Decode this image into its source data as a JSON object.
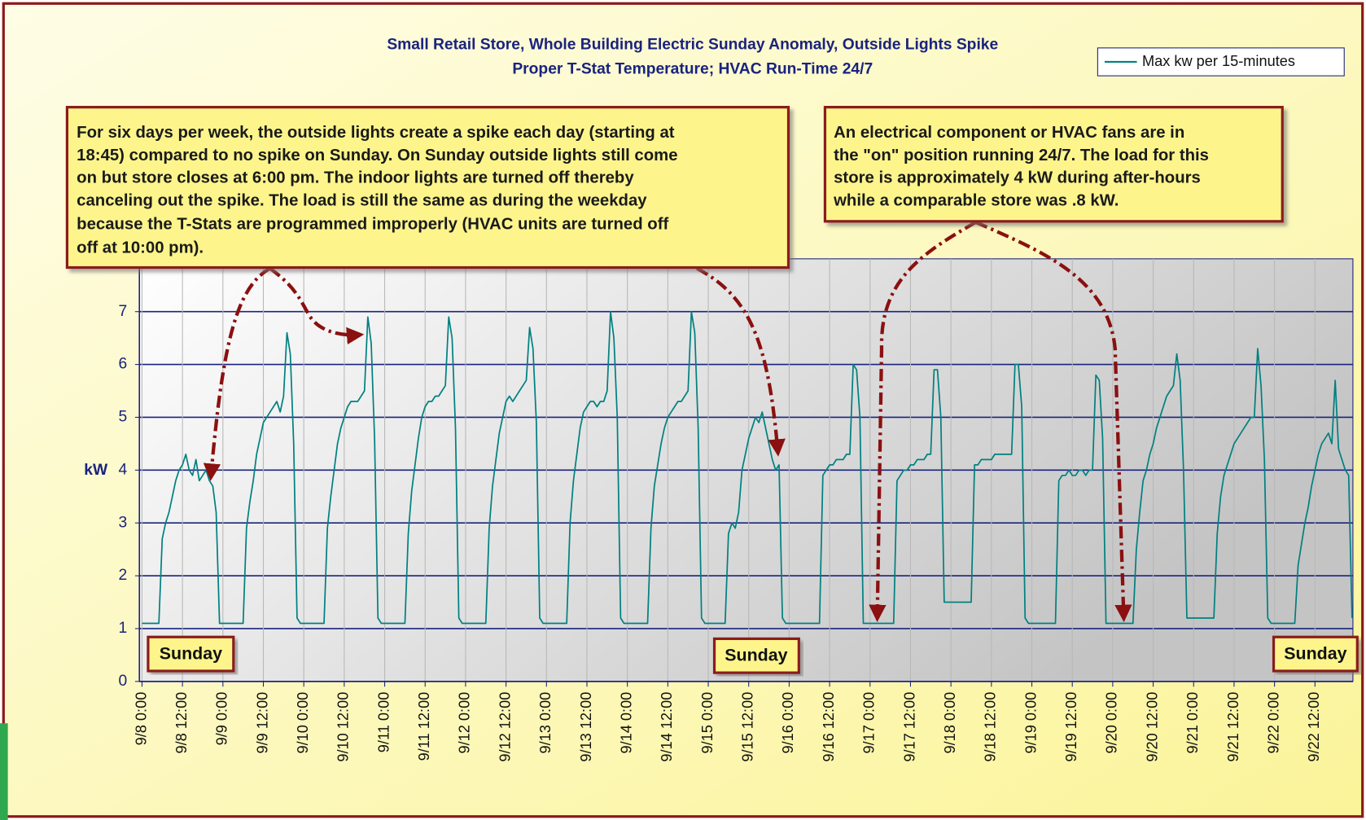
{
  "chart_data": {
    "type": "line",
    "title": [
      "Small Retail Store, Whole Building Electric Sunday Anomaly, Outside Lights Spike",
      "Proper T-Stat Temperature; HVAC Run-Time 24/7"
    ],
    "y_label": "kW",
    "ylim": [
      0,
      8
    ],
    "yticks": [
      0,
      1,
      2,
      3,
      4,
      5,
      6,
      7
    ],
    "grid": true,
    "legend": "top-right",
    "annotations": [
      [
        "For six days per week, the outside lights create a spike each day (starting at",
        "18:45) compared to no spike on Sunday.  On Sunday outside lights still come",
        "on but store closes at 6:00 pm.  The indoor lights are turned off thereby",
        "canceling out the spike.  The load is still the same as during the weekday",
        "because the T-Stats are programmed improperly (HVAC units are turned off",
        "off at 10:00 pm)."
      ],
      [
        "An electrical component or HVAC fans are in",
        "the \"on\" position running 24/7.  The load for this",
        "store is approximately 4 kW during after-hours",
        "while a comparable store was .8 kW."
      ]
    ],
    "day_labels": [
      "Sunday",
      "Sunday",
      "Sunday"
    ],
    "categories": [
      "9/8 0:00",
      null,
      null,
      null,
      null,
      null,
      null,
      null,
      null,
      null,
      null,
      null,
      "9/8 12:00",
      null,
      null,
      null,
      null,
      null,
      null,
      null,
      null,
      null,
      null,
      null,
      "9/9 0:00",
      null,
      null,
      null,
      null,
      null,
      null,
      null,
      null,
      null,
      null,
      null,
      "9/9 12:00",
      null,
      null,
      null,
      null,
      null,
      null,
      null,
      null,
      null,
      null,
      null,
      "9/10 0:00",
      null,
      null,
      null,
      null,
      null,
      null,
      null,
      null,
      null,
      null,
      null,
      "9/10 12:00",
      null,
      null,
      null,
      null,
      null,
      null,
      null,
      null,
      null,
      null,
      null,
      "9/11 0:00",
      null,
      null,
      null,
      null,
      null,
      null,
      null,
      null,
      null,
      null,
      null,
      "9/11 12:00",
      null,
      null,
      null,
      null,
      null,
      null,
      null,
      null,
      null,
      null,
      null,
      "9/12 0:00",
      null,
      null,
      null,
      null,
      null,
      null,
      null,
      null,
      null,
      null,
      null,
      "9/12 12:00",
      null,
      null,
      null,
      null,
      null,
      null,
      null,
      null,
      null,
      null,
      null,
      "9/13 0:00",
      null,
      null,
      null,
      null,
      null,
      null,
      null,
      null,
      null,
      null,
      null,
      "9/13 12:00",
      null,
      null,
      null,
      null,
      null,
      null,
      null,
      null,
      null,
      null,
      null,
      "9/14 0:00",
      null,
      null,
      null,
      null,
      null,
      null,
      null,
      null,
      null,
      null,
      null,
      "9/14 12:00",
      null,
      null,
      null,
      null,
      null,
      null,
      null,
      null,
      null,
      null,
      null,
      "9/15 0:00",
      null,
      null,
      null,
      null,
      null,
      null,
      null,
      null,
      null,
      null,
      null,
      "9/15 12:00",
      null,
      null,
      null,
      null,
      null,
      null,
      null,
      null,
      null,
      null,
      null,
      "9/16 0:00",
      null,
      null,
      null,
      null,
      null,
      null,
      null,
      null,
      null,
      null,
      null,
      "9/16 12:00",
      null,
      null,
      null,
      null,
      null,
      null,
      null,
      null,
      null,
      null,
      null,
      "9/17 0:00",
      null,
      null,
      null,
      null,
      null,
      null,
      null,
      null,
      null,
      null,
      null,
      "9/17 12:00",
      null,
      null,
      null,
      null,
      null,
      null,
      null,
      null,
      null,
      null,
      null,
      "9/18 0:00",
      null,
      null,
      null,
      null,
      null,
      null,
      null,
      null,
      null,
      null,
      null,
      "9/18 12:00",
      null,
      null,
      null,
      null,
      null,
      null,
      null,
      null,
      null,
      null,
      null,
      "9/19 0:00",
      null,
      null,
      null,
      null,
      null,
      null,
      null,
      null,
      null,
      null,
      null,
      "9/19 12:00",
      null,
      null,
      null,
      null,
      null,
      null,
      null,
      null,
      null,
      null,
      null,
      "9/20 0:00",
      null,
      null,
      null,
      null,
      null,
      null,
      null,
      null,
      null,
      null,
      null,
      "9/20 12:00",
      null,
      null,
      null,
      null,
      null,
      null,
      null,
      null,
      null,
      null,
      null,
      "9/21 0:00",
      null,
      null,
      null,
      null,
      null,
      null,
      null,
      null,
      null,
      null,
      null,
      "9/21 12:00",
      null,
      null,
      null,
      null,
      null,
      null,
      null,
      null,
      null,
      null,
      null,
      "9/22 0:00",
      null,
      null,
      null,
      null,
      null,
      null,
      null,
      null,
      null,
      null,
      null,
      "9/22 12:00",
      null,
      null,
      null,
      null,
      null,
      null,
      null,
      null,
      null,
      null,
      null
    ],
    "series": [
      {
        "name": "Max kw per 15-minutes",
        "color": "#008080",
        "values": [
          1.1,
          1.1,
          1.1,
          1.1,
          1.1,
          1.1,
          2.7,
          3.0,
          3.2,
          3.5,
          3.8,
          4.0,
          4.1,
          4.3,
          4.0,
          3.9,
          4.2,
          3.8,
          3.9,
          4.0,
          3.8,
          3.7,
          3.2,
          1.1,
          1.1,
          1.1,
          1.1,
          1.1,
          1.1,
          1.1,
          1.1,
          2.9,
          3.4,
          3.8,
          4.3,
          4.6,
          4.9,
          5.0,
          5.1,
          5.2,
          5.3,
          5.1,
          5.4,
          6.6,
          6.2,
          4.5,
          1.2,
          1.1,
          1.1,
          1.1,
          1.1,
          1.1,
          1.1,
          1.1,
          1.1,
          2.9,
          3.5,
          4.0,
          4.5,
          4.8,
          5.0,
          5.2,
          5.3,
          5.3,
          5.3,
          5.4,
          5.5,
          6.9,
          6.4,
          4.6,
          1.2,
          1.1,
          1.1,
          1.1,
          1.1,
          1.1,
          1.1,
          1.1,
          1.1,
          2.8,
          3.6,
          4.1,
          4.6,
          5.0,
          5.2,
          5.3,
          5.3,
          5.4,
          5.4,
          5.5,
          5.6,
          6.9,
          6.5,
          4.8,
          1.2,
          1.1,
          1.1,
          1.1,
          1.1,
          1.1,
          1.1,
          1.1,
          1.1,
          2.9,
          3.7,
          4.2,
          4.7,
          5.0,
          5.3,
          5.4,
          5.3,
          5.4,
          5.5,
          5.6,
          5.7,
          6.7,
          6.3,
          4.9,
          1.2,
          1.1,
          1.1,
          1.1,
          1.1,
          1.1,
          1.1,
          1.1,
          1.1,
          3.0,
          3.8,
          4.3,
          4.8,
          5.1,
          5.2,
          5.3,
          5.3,
          5.2,
          5.3,
          5.3,
          5.5,
          7.0,
          6.5,
          5.0,
          1.2,
          1.1,
          1.1,
          1.1,
          1.1,
          1.1,
          1.1,
          1.1,
          1.1,
          2.9,
          3.7,
          4.1,
          4.5,
          4.8,
          5.0,
          5.1,
          5.2,
          5.3,
          5.3,
          5.4,
          5.5,
          7.0,
          6.6,
          4.8,
          1.2,
          1.1,
          1.1,
          1.1,
          1.1,
          1.1,
          1.1,
          1.1,
          2.8,
          3.0,
          2.9,
          3.2,
          4.0,
          4.3,
          4.6,
          4.8,
          5.0,
          4.9,
          5.1,
          4.8,
          4.5,
          4.2,
          4.0,
          4.1,
          1.2,
          1.1,
          1.1,
          1.1,
          1.1,
          1.1,
          1.1,
          1.1,
          1.1,
          1.1,
          1.1,
          1.1,
          3.9,
          4.0,
          4.1,
          4.1,
          4.2,
          4.2,
          4.2,
          4.3,
          4.3,
          6.0,
          5.9,
          5.0,
          1.1,
          1.1,
          1.1,
          1.1,
          1.1,
          1.1,
          1.1,
          1.1,
          1.1,
          1.1,
          3.8,
          3.9,
          4.0,
          4.0,
          4.1,
          4.1,
          4.2,
          4.2,
          4.2,
          4.3,
          4.3,
          5.9,
          5.9,
          5.0,
          1.5,
          1.5,
          1.5,
          1.5,
          1.5,
          1.5,
          1.5,
          1.5,
          1.5,
          4.1,
          4.1,
          4.2,
          4.2,
          4.2,
          4.2,
          4.3,
          4.3,
          4.3,
          4.3,
          4.3,
          4.3,
          6.0,
          6.0,
          5.2,
          1.2,
          1.1,
          1.1,
          1.1,
          1.1,
          1.1,
          1.1,
          1.1,
          1.1,
          1.1,
          3.8,
          3.9,
          3.9,
          4.0,
          3.9,
          3.9,
          4.0,
          4.0,
          3.9,
          4.0,
          4.0,
          5.8,
          5.7,
          4.6,
          1.1,
          1.1,
          1.1,
          1.1,
          1.1,
          1.1,
          1.1,
          1.1,
          1.1,
          2.5,
          3.2,
          3.8,
          4.0,
          4.3,
          4.5,
          4.8,
          5.0,
          5.2,
          5.4,
          5.5,
          5.6,
          6.2,
          5.7,
          4.0,
          1.2,
          1.2,
          1.2,
          1.2,
          1.2,
          1.2,
          1.2,
          1.2,
          1.2,
          2.8,
          3.5,
          3.9,
          4.1,
          4.3,
          4.5,
          4.6,
          4.7,
          4.8,
          4.9,
          5.0,
          5.0,
          6.3,
          5.6,
          4.2,
          1.2,
          1.1,
          1.1,
          1.1,
          1.1,
          1.1,
          1.1,
          1.1,
          1.1,
          2.2,
          2.6,
          3.0,
          3.3,
          3.7,
          4.0,
          4.3,
          4.5,
          4.6,
          4.7,
          4.5,
          5.7,
          4.4,
          4.2,
          4.0,
          3.9,
          1.2
        ]
      }
    ]
  }
}
